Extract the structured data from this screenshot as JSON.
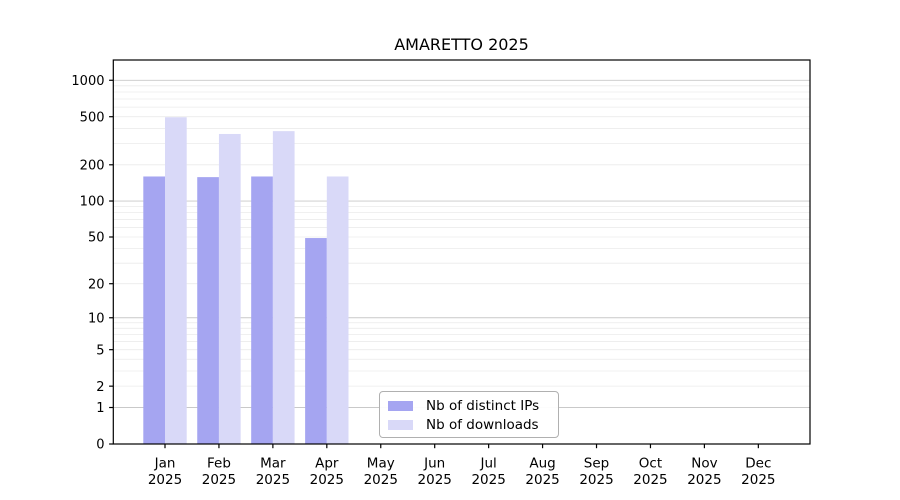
{
  "chart_data": {
    "type": "bar",
    "title": "AMARETTO 2025",
    "categories": [
      "Jan 2025",
      "Feb 2025",
      "Mar 2025",
      "Apr 2025",
      "May 2025",
      "Jun 2025",
      "Jul 2025",
      "Aug 2025",
      "Sep 2025",
      "Oct 2025",
      "Nov 2025",
      "Dec 2025"
    ],
    "x_axis": {
      "months": [
        "Jan",
        "Feb",
        "Mar",
        "Apr",
        "May",
        "Jun",
        "Jul",
        "Aug",
        "Sep",
        "Oct",
        "Nov",
        "Dec"
      ],
      "year": "2025"
    },
    "y_axis": {
      "ticks": [
        0,
        1,
        2,
        5,
        10,
        20,
        50,
        100,
        200,
        500,
        1000
      ],
      "scale": "log10(value+1)",
      "ylim": [
        0,
        1470
      ],
      "grid": "minor lines at 2-9 per decade, darker major lines at powers of 10"
    },
    "series": [
      {
        "name": "Nb of distinct IPs",
        "color": "#a5a5f1",
        "values": [
          160,
          158,
          160,
          49,
          null,
          null,
          null,
          null,
          null,
          null,
          null,
          null
        ]
      },
      {
        "name": "Nb of downloads",
        "color": "#d9d9f8",
        "values": [
          495,
          360,
          380,
          160,
          null,
          null,
          null,
          null,
          null,
          null,
          null,
          null
        ]
      }
    ],
    "legend": {
      "position": "inside-bottom-center",
      "border_color": "#b0b0b0"
    }
  },
  "colors": {
    "grid_minor": "#ebebeb",
    "grid_major": "#c9c9c9",
    "axis": "#000000",
    "background": "#ffffff"
  }
}
